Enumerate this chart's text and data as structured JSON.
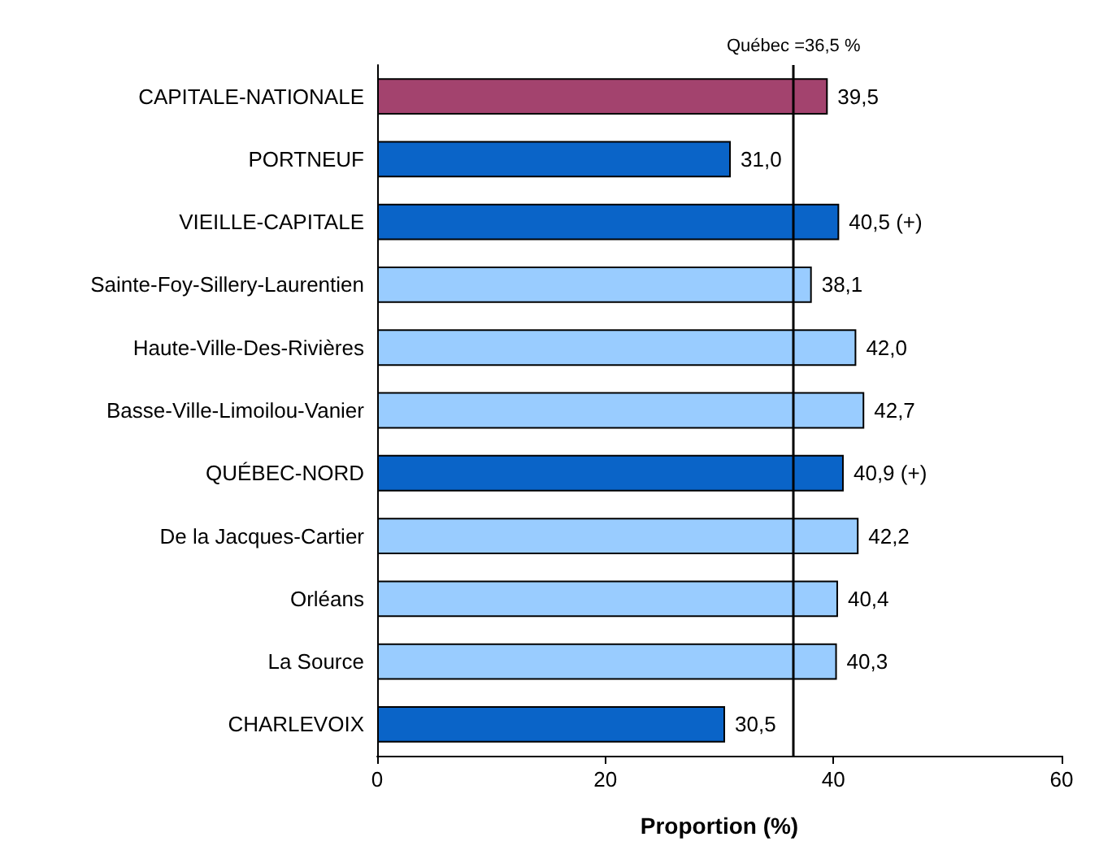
{
  "chart_data": {
    "type": "bar",
    "orientation": "horizontal",
    "xlabel": "Proportion (%)",
    "categories": [
      "CAPITALE-NATIONALE",
      "PORTNEUF",
      "VIEILLE-CAPITALE",
      "Sainte-Foy-Sillery-Laurentien",
      "Haute-Ville-Des-Rivières",
      "Basse-Ville-Limoilou-Vanier",
      "QUÉBEC-NORD",
      "De la Jacques-Cartier",
      "Orléans",
      "La Source",
      "CHARLEVOIX"
    ],
    "values": [
      39.5,
      31.0,
      40.5,
      38.1,
      42.0,
      42.7,
      40.9,
      42.2,
      40.4,
      40.3,
      30.5
    ],
    "value_labels": [
      "39,5",
      "31,0",
      "40,5 (+)",
      "38,1",
      "42,0",
      "42,7",
      "40,9 (+)",
      "42,2",
      "40,4",
      "40,3",
      "30,5"
    ],
    "colors": [
      "#a3436e",
      "#0a64c8",
      "#0a64c8",
      "#99ccff",
      "#99ccff",
      "#99ccff",
      "#0a64c8",
      "#99ccff",
      "#99ccff",
      "#99ccff",
      "#0a64c8"
    ],
    "xlim": [
      0,
      60
    ],
    "xticks": [
      0,
      20,
      40,
      60
    ],
    "grid": false,
    "ref_lines": [
      {
        "axis": "x",
        "value": 36.5,
        "label": "Québec =36,5 %",
        "color": "#000000"
      }
    ]
  }
}
